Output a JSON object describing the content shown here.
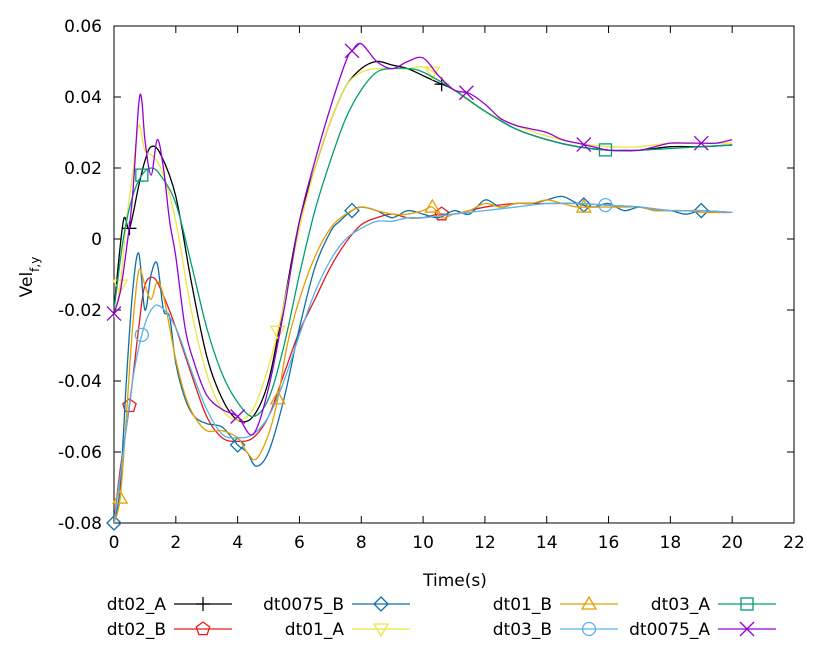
{
  "chart_data": {
    "type": "line",
    "title": "",
    "xlabel": "Time(s)",
    "ylabel_main": "Vel",
    "ylabel_sub": "f,y",
    "xlim": [
      0,
      22
    ],
    "ylim": [
      -0.08,
      0.06
    ],
    "xticks": [
      0,
      2,
      4,
      6,
      8,
      10,
      12,
      14,
      16,
      18,
      20,
      22
    ],
    "xtick_labels": [
      "0",
      "2",
      "4",
      "6",
      "8",
      "10",
      "12",
      "14",
      "16",
      "18",
      "20",
      "22"
    ],
    "yticks": [
      -0.08,
      -0.06,
      -0.04,
      -0.02,
      0,
      0.02,
      0.04,
      0.06
    ],
    "ytick_labels": [
      "-0.08",
      "-0.06",
      "-0.04",
      "-0.02",
      "0",
      "0.02",
      "0.04",
      "0.06"
    ],
    "grid": false,
    "legend_position": "bottom",
    "series": [
      {
        "name": "dt02_A",
        "color": "#000000",
        "marker": "plus",
        "x": [
          0,
          0.3,
          0.5,
          0.8,
          1.0,
          1.2,
          1.5,
          2.0,
          2.5,
          3.0,
          3.5,
          4.0,
          4.5,
          5.0,
          5.5,
          6.0,
          6.5,
          7.0,
          7.5,
          8.0,
          8.5,
          9.0,
          9.5,
          10.0,
          10.5,
          11.0,
          12.0,
          13.0,
          14.0,
          15.0,
          16.0,
          17.0,
          18.0,
          19.0,
          20.0
        ],
        "y": [
          -0.02,
          0.005,
          0.003,
          0.015,
          0.022,
          0.026,
          0.024,
          0.012,
          -0.012,
          -0.033,
          -0.045,
          -0.051,
          -0.05,
          -0.04,
          -0.018,
          0.005,
          0.02,
          0.033,
          0.043,
          0.048,
          0.05,
          0.049,
          0.048,
          0.046,
          0.044,
          0.042,
          0.036,
          0.031,
          0.028,
          0.026,
          0.025,
          0.025,
          0.026,
          0.026,
          0.0265
        ],
        "marker_x": [
          0.5,
          10.6
        ]
      },
      {
        "name": "dt02_B",
        "color": "#e41a1c",
        "marker": "pentagon",
        "x": [
          0,
          0.2,
          0.5,
          0.8,
          1.0,
          1.3,
          1.6,
          2.0,
          2.5,
          3.0,
          3.5,
          4.0,
          4.5,
          5.0,
          5.5,
          6.0,
          6.5,
          7.0,
          7.5,
          8.0,
          8.5,
          9.0,
          9.5,
          10.0,
          10.5,
          11.0,
          12.0,
          13.0,
          14.0,
          15.0,
          16.0,
          17.0,
          18.0,
          19.0,
          20.0
        ],
        "y": [
          -0.08,
          -0.065,
          -0.047,
          -0.025,
          -0.013,
          -0.011,
          -0.016,
          -0.025,
          -0.038,
          -0.05,
          -0.056,
          -0.057,
          -0.056,
          -0.05,
          -0.038,
          -0.026,
          -0.017,
          -0.008,
          -0.001,
          0.004,
          0.006,
          0.007,
          0.006,
          0.006,
          0.007,
          0.007,
          0.009,
          0.01,
          0.01,
          0.01,
          0.0095,
          0.009,
          0.008,
          0.008,
          0.0075
        ],
        "marker_x": [
          0.5,
          10.6
        ]
      },
      {
        "name": "dt0075_B",
        "color": "#0d6fa8",
        "marker": "diamond",
        "x": [
          0,
          0.2,
          0.4,
          0.6,
          0.8,
          1.0,
          1.2,
          1.4,
          1.6,
          1.8,
          2.0,
          2.3,
          2.6,
          3.0,
          3.5,
          4.0,
          4.3,
          4.6,
          5.0,
          5.5,
          6.0,
          6.5,
          7.0,
          7.3,
          7.7,
          8.0,
          8.5,
          9.0,
          9.5,
          10.0,
          10.5,
          11.0,
          11.5,
          12.0,
          12.5,
          13.0,
          13.5,
          14.0,
          14.5,
          15.0,
          15.5,
          16.0,
          16.5,
          17.0,
          17.5,
          18.0,
          18.5,
          19.0,
          19.5,
          20.0
        ],
        "y": [
          -0.08,
          -0.07,
          -0.04,
          -0.015,
          -0.004,
          -0.02,
          -0.01,
          -0.007,
          -0.02,
          -0.022,
          -0.035,
          -0.045,
          -0.05,
          -0.052,
          -0.053,
          -0.058,
          -0.06,
          -0.064,
          -0.06,
          -0.045,
          -0.025,
          -0.008,
          0.002,
          0.005,
          0.008,
          0.009,
          0.008,
          0.006,
          0.008,
          0.007,
          0.006,
          0.008,
          0.007,
          0.011,
          0.009,
          0.01,
          0.01,
          0.011,
          0.012,
          0.01,
          0.009,
          0.01,
          0.008,
          0.009,
          0.008,
          0.008,
          0.007,
          0.008,
          0.0075,
          0.0075
        ],
        "marker_x": [
          0,
          4.0,
          7.7,
          15.2,
          19.0
        ]
      },
      {
        "name": "dt01_A",
        "color": "#f0e442",
        "marker": "triangle-down",
        "x": [
          0,
          0.2,
          0.4,
          0.6,
          0.8,
          1.0,
          1.3,
          1.6,
          2.0,
          2.5,
          3.0,
          3.5,
          4.0,
          4.5,
          5.0,
          5.3,
          5.6,
          6.0,
          6.5,
          7.0,
          7.5,
          8.0,
          8.5,
          9.0,
          9.5,
          10.0,
          10.5,
          11.0,
          12.0,
          13.0,
          14.0,
          15.0,
          16.0,
          17.0,
          18.0,
          19.0,
          20.0
        ],
        "y": [
          -0.022,
          -0.013,
          0.005,
          0.018,
          0.032,
          0.025,
          0.023,
          0.018,
          0.005,
          -0.02,
          -0.038,
          -0.048,
          -0.051,
          -0.048,
          -0.036,
          -0.026,
          -0.014,
          0.003,
          0.02,
          0.033,
          0.043,
          0.047,
          0.048,
          0.048,
          0.048,
          0.0485,
          0.046,
          0.042,
          0.036,
          0.032,
          0.029,
          0.027,
          0.026,
          0.026,
          0.027,
          0.027,
          0.027
        ],
        "marker_x": [
          0.2,
          5.3,
          10.3
        ]
      },
      {
        "name": "dt01_B",
        "color": "#e69f00",
        "marker": "triangle-up",
        "x": [
          0,
          0.2,
          0.4,
          0.6,
          0.8,
          1.0,
          1.2,
          1.4,
          1.6,
          1.8,
          2.0,
          2.3,
          2.6,
          3.0,
          3.5,
          4.0,
          4.3,
          4.6,
          5.0,
          5.3,
          5.6,
          6.0,
          6.5,
          7.0,
          7.5,
          8.0,
          8.5,
          9.0,
          9.5,
          10.0,
          10.3,
          10.6,
          11.0,
          11.5,
          12.0,
          12.5,
          13.0,
          13.5,
          14.0,
          14.5,
          15.0,
          15.5,
          16.0,
          16.5,
          17.0,
          17.5,
          18.0,
          18.5,
          19.0,
          19.5,
          20.0
        ],
        "y": [
          -0.08,
          -0.073,
          -0.05,
          -0.025,
          -0.009,
          -0.013,
          -0.017,
          -0.012,
          -0.016,
          -0.025,
          -0.034,
          -0.044,
          -0.05,
          -0.054,
          -0.054,
          -0.056,
          -0.06,
          -0.062,
          -0.055,
          -0.045,
          -0.03,
          -0.017,
          -0.005,
          0.003,
          0.007,
          0.009,
          0.008,
          0.007,
          0.007,
          0.008,
          0.009,
          0.006,
          0.007,
          0.008,
          0.01,
          0.009,
          0.01,
          0.01,
          0.011,
          0.01,
          0.009,
          0.009,
          0.009,
          0.009,
          0.009,
          0.008,
          0.008,
          0.008,
          0.0075,
          0.0075,
          0.0075
        ],
        "marker_x": [
          0.2,
          5.3,
          10.3,
          15.2
        ]
      },
      {
        "name": "dt03_B",
        "color": "#56b4e9",
        "marker": "circle",
        "x": [
          0,
          0.3,
          0.6,
          0.9,
          1.2,
          1.5,
          2.0,
          2.5,
          3.0,
          3.5,
          4.0,
          4.5,
          5.0,
          5.5,
          6.0,
          6.5,
          7.0,
          7.5,
          8.0,
          8.5,
          9.0,
          9.5,
          10.0,
          11.0,
          12.0,
          13.0,
          14.0,
          15.0,
          16.0,
          17.0,
          18.0,
          19.0,
          20.0
        ],
        "y": [
          -0.08,
          -0.06,
          -0.04,
          -0.027,
          -0.02,
          -0.019,
          -0.025,
          -0.037,
          -0.048,
          -0.055,
          -0.056,
          -0.055,
          -0.05,
          -0.04,
          -0.027,
          -0.015,
          -0.006,
          0.0,
          0.003,
          0.005,
          0.005,
          0.006,
          0.006,
          0.007,
          0.008,
          0.009,
          0.01,
          0.01,
          0.0095,
          0.009,
          0.008,
          0.008,
          0.0075
        ],
        "marker_x": [
          0.9,
          15.9
        ]
      },
      {
        "name": "dt03_A",
        "color": "#009e73",
        "marker": "square",
        "x": [
          0,
          0.3,
          0.6,
          0.9,
          1.2,
          1.5,
          2.0,
          2.5,
          3.0,
          3.5,
          4.0,
          4.5,
          5.0,
          5.5,
          6.0,
          6.5,
          7.0,
          7.5,
          8.0,
          8.5,
          9.0,
          9.5,
          10.0,
          11.0,
          12.0,
          13.0,
          14.0,
          15.0,
          16.0,
          17.0,
          18.0,
          19.0,
          20.0
        ],
        "y": [
          -0.02,
          0.0,
          0.012,
          0.018,
          0.02,
          0.018,
          0.01,
          -0.007,
          -0.025,
          -0.038,
          -0.046,
          -0.05,
          -0.045,
          -0.03,
          -0.01,
          0.008,
          0.022,
          0.034,
          0.042,
          0.047,
          0.048,
          0.048,
          0.047,
          0.042,
          0.036,
          0.031,
          0.028,
          0.026,
          0.025,
          0.025,
          0.0255,
          0.026,
          0.0265
        ],
        "marker_x": [
          0.9,
          15.9
        ]
      },
      {
        "name": "dt0075_A",
        "color": "#9400d3",
        "marker": "cross",
        "x": [
          0,
          0.2,
          0.4,
          0.6,
          0.8,
          0.9,
          1.0,
          1.2,
          1.4,
          1.6,
          1.8,
          2.0,
          2.3,
          2.6,
          3.0,
          3.5,
          4.0,
          4.5,
          5.0,
          5.5,
          6.0,
          6.5,
          7.0,
          7.5,
          7.7,
          8.0,
          8.5,
          9.0,
          9.5,
          10.0,
          10.5,
          11.0,
          11.5,
          12.0,
          12.5,
          13.0,
          13.5,
          14.0,
          14.5,
          15.0,
          15.5,
          16.0,
          16.5,
          17.0,
          17.5,
          18.0,
          18.5,
          19.0,
          19.5,
          20.0
        ],
        "y": [
          -0.021,
          -0.015,
          -0.003,
          0.012,
          0.038,
          0.039,
          0.028,
          0.018,
          0.028,
          0.02,
          0.005,
          -0.005,
          -0.025,
          -0.035,
          -0.044,
          -0.048,
          -0.05,
          -0.055,
          -0.042,
          -0.02,
          0.005,
          0.022,
          0.037,
          0.05,
          0.053,
          0.055,
          0.05,
          0.048,
          0.05,
          0.051,
          0.046,
          0.042,
          0.041,
          0.038,
          0.034,
          0.032,
          0.031,
          0.03,
          0.028,
          0.027,
          0.026,
          0.025,
          0.025,
          0.025,
          0.026,
          0.027,
          0.027,
          0.027,
          0.027,
          0.028
        ],
        "marker_x": [
          0,
          4.0,
          7.7,
          11.4,
          15.2,
          19.0
        ]
      }
    ],
    "legend_layout": [
      [
        "dt02_A",
        "dt0075_B",
        "dt01_B",
        "dt03_A"
      ],
      [
        "dt02_B",
        "dt01_A",
        "dt03_B",
        "dt0075_A"
      ]
    ]
  }
}
